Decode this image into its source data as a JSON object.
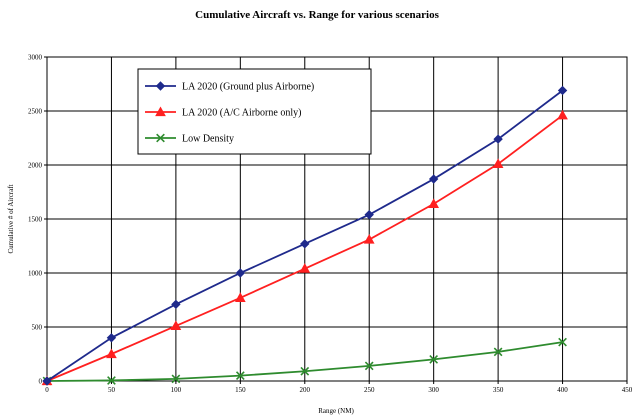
{
  "chart_data": {
    "type": "line",
    "title": "Cumulative Aircraft vs. Range for various scenarios",
    "xlabel": "Range (NM)",
    "ylabel": "Cumulative # of Aircraft",
    "xlim": [
      0,
      450
    ],
    "ylim": [
      0,
      3000
    ],
    "x_ticks": [
      "0",
      "50",
      "100",
      "150",
      "200",
      "250",
      "300",
      "350",
      "400",
      "450"
    ],
    "y_ticks": [
      "0",
      "500",
      "1000",
      "1500",
      "2000",
      "2500",
      "3000"
    ],
    "grid": true,
    "legend_position": "top-left",
    "x": [
      0,
      50,
      100,
      150,
      200,
      250,
      300,
      350,
      400
    ],
    "series": [
      {
        "name": "LA 2020 (Ground plus Airborne)",
        "color": "#1f2a8c",
        "marker": "diamond",
        "values": [
          0,
          400,
          710,
          1000,
          1270,
          1540,
          1870,
          2240,
          2690
        ]
      },
      {
        "name": "LA 2020 (A/C Airborne only)",
        "color": "#ff2020",
        "marker": "triangle",
        "values": [
          0,
          250,
          510,
          770,
          1040,
          1310,
          1640,
          2010,
          2460
        ]
      },
      {
        "name": "Low Density",
        "color": "#2e8b2e",
        "marker": "x",
        "values": [
          0,
          5,
          20,
          50,
          90,
          140,
          200,
          270,
          360
        ]
      }
    ]
  }
}
